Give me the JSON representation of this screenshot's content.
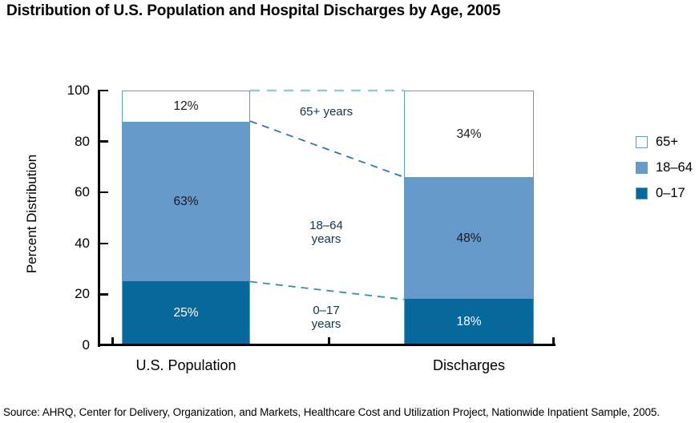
{
  "title": "Distribution of U.S. Population and Hospital Discharges by Age, 2005",
  "source": "Source:  AHRQ, Center for Delivery, Organization, and Markets, Healthcare Cost and Utilization Project, Nationwide Inpatient Sample, 2005.",
  "chart_data": {
    "type": "bar",
    "stacked": true,
    "title": "Distribution of U.S. Population and Hospital Discharges by Age, 2005",
    "categories": [
      "U.S. Population",
      "Discharges"
    ],
    "series": [
      {
        "name": "0–17",
        "values": [
          25,
          18
        ],
        "color": "#07689B",
        "label_color": "#FFFFFF"
      },
      {
        "name": "18–64",
        "values": [
          63,
          48
        ],
        "color": "#6899CB",
        "label_color": "#1A1A1A"
      },
      {
        "name": "65+",
        "values": [
          12,
          34
        ],
        "color": "#FFFFFF",
        "label_color": "#1A1A1A"
      }
    ],
    "segment_label_suffix": "%",
    "ylabel": "Percent Distribution",
    "ylim": [
      0,
      100
    ],
    "y_ticks": [
      0,
      20,
      40,
      60,
      80,
      100
    ],
    "grid": false,
    "legend_position": "right",
    "legend": [
      {
        "label": "65+",
        "color": "#FFFFFF"
      },
      {
        "label": "18–64",
        "color": "#6899CB"
      },
      {
        "label": "0–17",
        "color": "#07689B"
      }
    ],
    "connector_labels": [
      {
        "lines": [
          "65+ years"
        ]
      },
      {
        "lines": [
          "18–64",
          "years"
        ]
      },
      {
        "lines": [
          "0–17",
          "years"
        ]
      }
    ],
    "bar_border_color": "#5EA3B4",
    "connector_colors": [
      "#9CC8D4",
      "#2E78AE",
      "#2E93A3"
    ],
    "axis_color": "#000000"
  }
}
